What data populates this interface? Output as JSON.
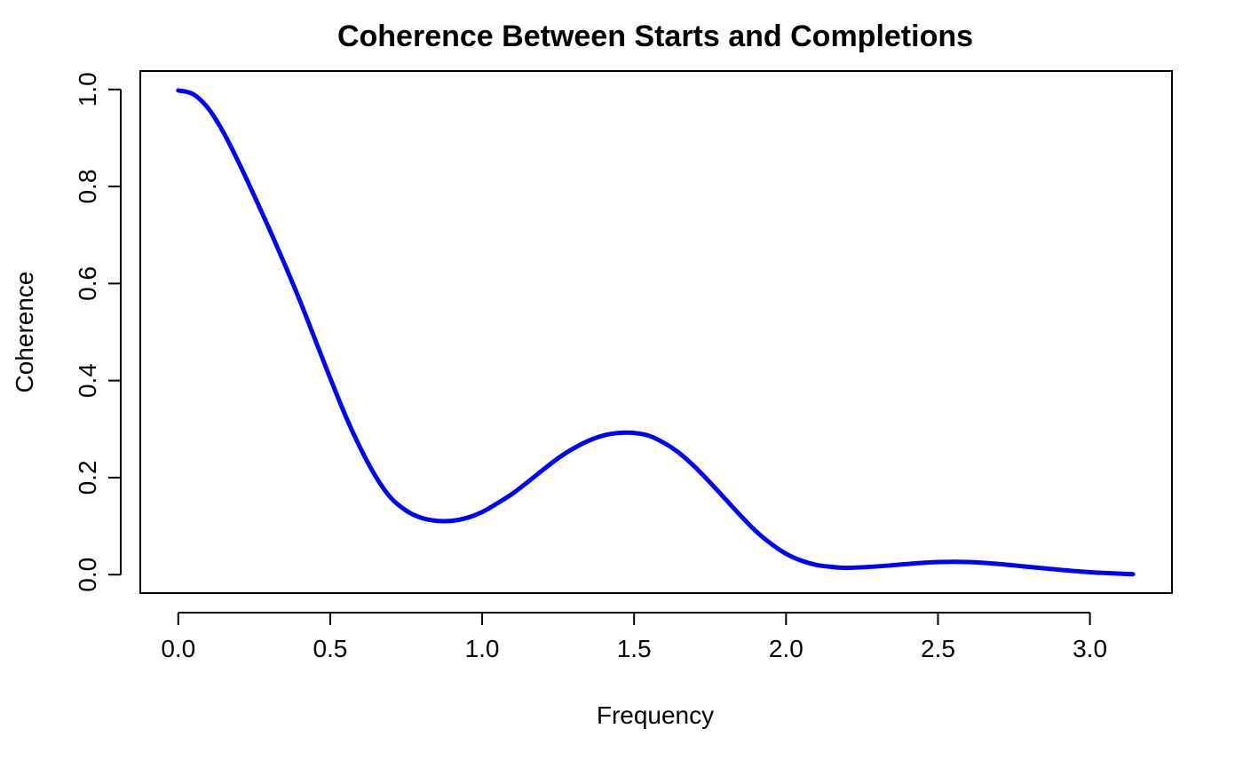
{
  "chart_data": {
    "type": "line",
    "title": "Coherence Between Starts and Completions",
    "xlabel": "Frequency",
    "ylabel": "Coherence",
    "xlim": [
      -0.125,
      3.27
    ],
    "ylim": [
      -0.038,
      1.038
    ],
    "grid": false,
    "x_ticks": [
      {
        "value": 0.0,
        "label": "0.0"
      },
      {
        "value": 0.5,
        "label": "0.5"
      },
      {
        "value": 1.0,
        "label": "1.0"
      },
      {
        "value": 1.5,
        "label": "1.5"
      },
      {
        "value": 2.0,
        "label": "2.0"
      },
      {
        "value": 2.5,
        "label": "2.5"
      },
      {
        "value": 3.0,
        "label": "3.0"
      }
    ],
    "y_ticks": [
      {
        "value": 0.0,
        "label": "0.0"
      },
      {
        "value": 0.2,
        "label": "0.2"
      },
      {
        "value": 0.4,
        "label": "0.4"
      },
      {
        "value": 0.6,
        "label": "0.6"
      },
      {
        "value": 0.8,
        "label": "0.8"
      },
      {
        "value": 1.0,
        "label": "1.0"
      }
    ],
    "series": [
      {
        "color": "#0000ff",
        "x": [
          0.0,
          0.05,
          0.1,
          0.15,
          0.2,
          0.25,
          0.3,
          0.35,
          0.4,
          0.45,
          0.5,
          0.55,
          0.6,
          0.65,
          0.7,
          0.75,
          0.8,
          0.85,
          0.9,
          0.95,
          1.0,
          1.05,
          1.1,
          1.15,
          1.2,
          1.25,
          1.3,
          1.35,
          1.4,
          1.45,
          1.5,
          1.55,
          1.6,
          1.65,
          1.7,
          1.75,
          1.8,
          1.85,
          1.9,
          1.95,
          2.0,
          2.05,
          2.1,
          2.15,
          2.2,
          2.3,
          2.4,
          2.5,
          2.6,
          2.7,
          2.8,
          2.9,
          3.0,
          3.1,
          3.1416
        ],
        "y": [
          0.998,
          0.99,
          0.96,
          0.91,
          0.848,
          0.781,
          0.712,
          0.64,
          0.565,
          0.485,
          0.405,
          0.328,
          0.26,
          0.202,
          0.158,
          0.132,
          0.117,
          0.111,
          0.111,
          0.117,
          0.129,
          0.147,
          0.167,
          0.191,
          0.216,
          0.24,
          0.26,
          0.276,
          0.287,
          0.292,
          0.292,
          0.286,
          0.271,
          0.25,
          0.222,
          0.19,
          0.156,
          0.122,
          0.09,
          0.064,
          0.043,
          0.029,
          0.02,
          0.016,
          0.014,
          0.017,
          0.022,
          0.026,
          0.026,
          0.022,
          0.016,
          0.01,
          0.005,
          0.002,
          0.001
        ]
      }
    ]
  }
}
